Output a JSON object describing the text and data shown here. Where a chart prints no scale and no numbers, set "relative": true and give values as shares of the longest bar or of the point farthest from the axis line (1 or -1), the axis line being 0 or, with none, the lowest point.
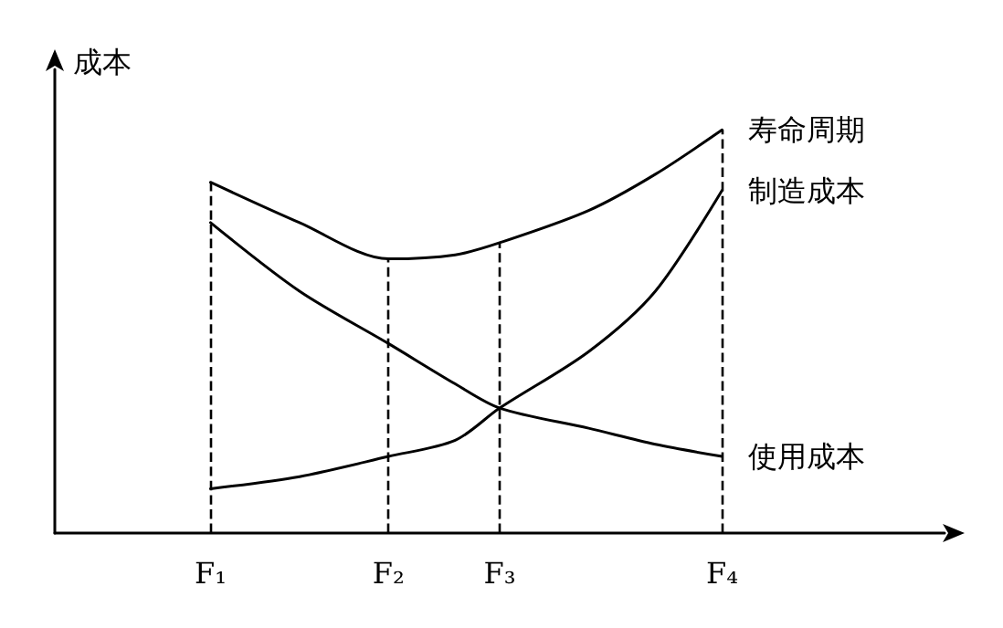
{
  "chart_data": {
    "type": "line",
    "relative": true,
    "ylabel": "成本",
    "categories": [
      null,
      null,
      null,
      null,
      null,
      null,
      null,
      "F₁",
      null,
      null,
      null,
      null,
      null,
      null,
      null,
      "F₂",
      null,
      null,
      null,
      null,
      "F₃",
      null,
      null,
      null,
      null,
      null,
      null,
      null,
      null,
      null,
      "F₄",
      null,
      null,
      null,
      null,
      null,
      null,
      null,
      null,
      null,
      null
    ],
    "series": [
      {
        "name": "寿命周期",
        "color": "#000000",
        "values": [
          null,
          null,
          null,
          null,
          null,
          null,
          null,
          0.87,
          null,
          null,
          null,
          0.77,
          null,
          null,
          null,
          0.68,
          null,
          null,
          0.69,
          null,
          0.72,
          null,
          null,
          null,
          0.8,
          null,
          null,
          0.89,
          null,
          null,
          1,
          null,
          null,
          null,
          null,
          null,
          null,
          null,
          null,
          null,
          null
        ]
      },
      {
        "name": "制造成本",
        "color": "#000000",
        "values": [
          null,
          null,
          null,
          null,
          null,
          null,
          null,
          0.11,
          null,
          null,
          null,
          0.14,
          null,
          null,
          null,
          0.19,
          null,
          null,
          0.23,
          null,
          0.31,
          null,
          null,
          null,
          0.45,
          null,
          null,
          0.6,
          null,
          null,
          0.85,
          null,
          null,
          null,
          null,
          null,
          null,
          null,
          null,
          null,
          null
        ]
      },
      {
        "name": "使用成本",
        "color": "#000000",
        "values": [
          null,
          null,
          null,
          null,
          null,
          null,
          null,
          0.77,
          null,
          null,
          null,
          0.6,
          null,
          null,
          null,
          0.47,
          null,
          null,
          0.37,
          null,
          0.31,
          null,
          null,
          null,
          0.26,
          null,
          null,
          0.22,
          null,
          null,
          0.19,
          null,
          null,
          null,
          null,
          null,
          null,
          null,
          null,
          null,
          null
        ]
      }
    ],
    "ref_lines": [
      {
        "axis": "x",
        "value": "F₁",
        "label": null,
        "line_style": "dashed"
      },
      {
        "axis": "x",
        "value": "F₂",
        "label": null,
        "line_style": "dashed"
      },
      {
        "axis": "x",
        "value": "F₃",
        "label": null,
        "line_style": "dashed"
      },
      {
        "axis": "x",
        "value": "F₄",
        "label": null,
        "line_style": "dashed"
      }
    ],
    "grid": false,
    "legend": false,
    "marker": "none",
    "line_style": "solid"
  }
}
